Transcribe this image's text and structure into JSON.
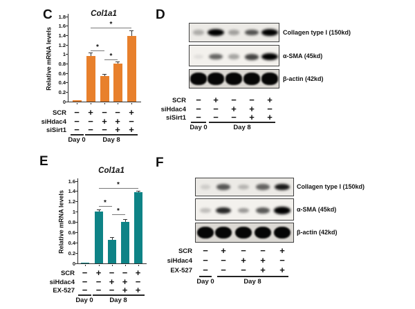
{
  "figure": {
    "background": "#ffffff",
    "panels": {
      "c": {
        "letter": "C"
      },
      "d": {
        "letter": "D"
      },
      "e": {
        "letter": "E"
      },
      "f": {
        "letter": "F"
      }
    }
  },
  "colors": {
    "orange_bar": "#E8802C",
    "teal_bar": "#0E8386",
    "axis": "#2B2B2B",
    "sig_line": "#777777",
    "error_bar": "#333333"
  },
  "chart_data": [
    {
      "panel": "C",
      "type": "bar",
      "title": "Col1a1",
      "ylabel": "Relative mRNA levels",
      "ylim": [
        0,
        1.8
      ],
      "ytick_step": 0.2,
      "bar_color": "#E8802C",
      "categories": [
        "Day 0",
        "Day 8 SCR",
        "Day 8 siHdac4",
        "Day 8 siHdac4+siSirt1",
        "Day 8 SCR+siSirt1"
      ],
      "values": [
        0.03,
        0.97,
        0.54,
        0.8,
        1.39
      ],
      "errors": [
        0.01,
        0.07,
        0.05,
        0.05,
        0.12
      ],
      "significance": [
        {
          "from": 1,
          "to": 2,
          "y": 1.08,
          "label": "*"
        },
        {
          "from": 2,
          "to": 3,
          "y": 0.9,
          "label": "*"
        },
        {
          "from": 1,
          "to": 4,
          "y": 1.57,
          "label": "*"
        }
      ],
      "condition_rows": [
        {
          "label": "SCR",
          "signs": [
            "−",
            "+",
            "−",
            "−",
            "+"
          ]
        },
        {
          "label": "siHdac4",
          "signs": [
            "−",
            "−",
            "+",
            "+",
            "−"
          ]
        },
        {
          "label": "siSirt1",
          "signs": [
            "−",
            "−",
            "−",
            "+",
            "+"
          ]
        }
      ],
      "day_groups": [
        {
          "label": "Day 0",
          "from": 0,
          "to": 0
        },
        {
          "label": "Day 8",
          "from": 1,
          "to": 4
        }
      ]
    },
    {
      "panel": "E",
      "type": "bar",
      "title": "Col1a1",
      "ylabel": "Relative mRNA levels",
      "ylim": [
        0,
        1.6
      ],
      "ytick_step": 0.2,
      "bar_color": "#0E8386",
      "categories": [
        "Day 0",
        "Day 8 SCR",
        "Day 8 siHdac4",
        "Day 8 siHdac4+EX-527",
        "Day 8 SCR+EX-527"
      ],
      "values": [
        0.02,
        1.01,
        0.46,
        0.81,
        1.39
      ],
      "errors": [
        0.01,
        0.04,
        0.05,
        0.05,
        0.02
      ],
      "significance": [
        {
          "from": 1,
          "to": 2,
          "y": 1.12,
          "label": "*"
        },
        {
          "from": 2,
          "to": 3,
          "y": 0.95,
          "label": "*"
        },
        {
          "from": 1,
          "to": 4,
          "y": 1.47,
          "label": "*"
        }
      ],
      "condition_rows": [
        {
          "label": "SCR",
          "signs": [
            "−",
            "+",
            "−",
            "−",
            "+"
          ]
        },
        {
          "label": "siHdac4",
          "signs": [
            "−",
            "−",
            "+",
            "+",
            "−"
          ]
        },
        {
          "label": "EX-527",
          "signs": [
            "−",
            "−",
            "−",
            "+",
            "+"
          ]
        }
      ],
      "day_groups": [
        {
          "label": "Day 0",
          "from": 0,
          "to": 0
        },
        {
          "label": "Day 8",
          "from": 1,
          "to": 4
        }
      ]
    }
  ],
  "blot_data": [
    {
      "panel": "D",
      "strips": [
        {
          "label": "Collagen type I (150kd)",
          "band_intensities": [
            0.25,
            0.95,
            0.3,
            0.62,
            1.0
          ]
        },
        {
          "label": "α-SMA (45kd)",
          "band_intensities": [
            0.07,
            0.55,
            0.3,
            0.68,
            0.95
          ]
        },
        {
          "label": "β-actin (42kd)",
          "band_intensities": [
            1,
            1,
            1,
            1,
            1
          ],
          "loading_control": true
        }
      ],
      "condition_rows": [
        {
          "label": "SCR",
          "signs": [
            "−",
            "+",
            "−",
            "−",
            "+"
          ]
        },
        {
          "label": "siHdac4",
          "signs": [
            "−",
            "−",
            "+",
            "+",
            "−"
          ]
        },
        {
          "label": "siSirt1",
          "signs": [
            "−",
            "−",
            "−",
            "+",
            "+"
          ]
        }
      ],
      "day_groups": [
        {
          "label": "Day 0",
          "from": 0,
          "to": 0
        },
        {
          "label": "Day 8",
          "from": 1,
          "to": 4
        }
      ]
    },
    {
      "panel": "F",
      "strips": [
        {
          "label": "Collagen type I (150kd)",
          "band_intensities": [
            0.12,
            0.6,
            0.22,
            0.55,
            0.85
          ]
        },
        {
          "label": "α-SMA (45kd)",
          "band_intensities": [
            0.2,
            0.8,
            0.35,
            0.6,
            1.0
          ]
        },
        {
          "label": "β-actin (42kd)",
          "band_intensities": [
            1,
            1,
            1,
            1,
            1
          ],
          "loading_control": true
        }
      ],
      "condition_rows": [
        {
          "label": "SCR",
          "signs": [
            "−",
            "+",
            "−",
            "−",
            "+"
          ]
        },
        {
          "label": "siHdac4",
          "signs": [
            "−",
            "−",
            "+",
            "+",
            "−"
          ]
        },
        {
          "label": "EX-527",
          "signs": [
            "−",
            "−",
            "−",
            "+",
            "+"
          ]
        }
      ],
      "day_groups": [
        {
          "label": "Day 0",
          "from": 0,
          "to": 0
        },
        {
          "label": "Day 8",
          "from": 1,
          "to": 4
        }
      ]
    }
  ]
}
